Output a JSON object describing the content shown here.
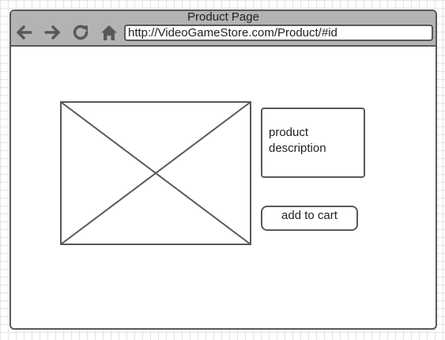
{
  "window": {
    "title": "Product Page"
  },
  "toolbar": {
    "back_icon": "arrow-left",
    "forward_icon": "arrow-right",
    "reload_icon": "refresh",
    "home_icon": "home",
    "url": "http://VideoGameStore.com/Product/#id"
  },
  "product": {
    "image_placeholder": "image-placeholder-x",
    "description": "product description",
    "cart_label": "add to cart"
  },
  "colors": {
    "outline": "#595959",
    "titlebar": "#b3b3b3",
    "grid": "#e4e4e4"
  }
}
